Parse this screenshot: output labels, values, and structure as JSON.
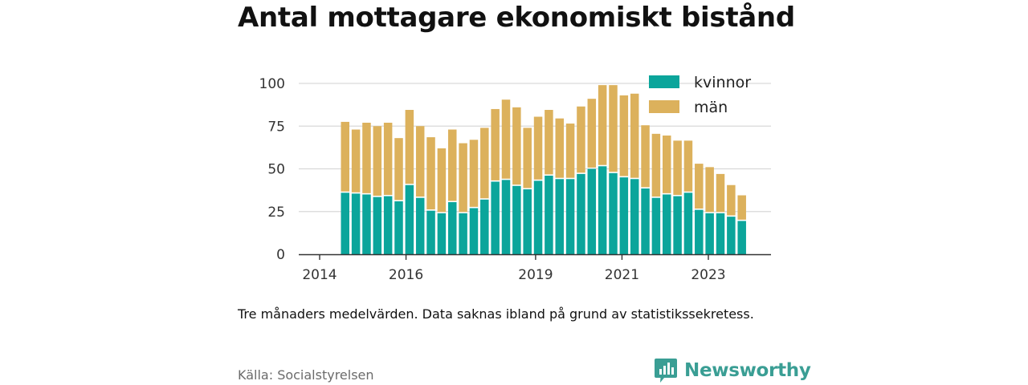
{
  "title": "Antal mottagare ekonomiskt bistånd",
  "note": "Tre månaders medelvärden. Data saknas ibland på grund av statistikssekretess.",
  "source": "Källa: Socialstyrelsen",
  "brand": {
    "name": "Newsworthy",
    "logo_icon": "bar-chart-speech-bubble-icon",
    "color": "#3a9e94"
  },
  "chart_data": {
    "type": "bar",
    "stacked": true,
    "title": "Antal mottagare ekonomiskt bistånd",
    "xlabel": "",
    "ylabel": "",
    "ylim": [
      0,
      100
    ],
    "yticks": [
      0,
      25,
      50,
      75,
      100
    ],
    "xticks": [
      "2014",
      "2016",
      "2019",
      "2021",
      "2023"
    ],
    "grid": true,
    "legend_position": "top-right",
    "series": [
      {
        "name": "kvinnor",
        "color": "#0ba59b",
        "values": [
          36,
          35.5,
          35,
          33.5,
          34,
          31,
          40.5,
          33,
          25.5,
          24,
          30.5,
          24,
          27,
          32,
          42.5,
          43.5,
          40,
          38,
          43,
          46,
          44,
          44,
          47,
          50,
          51.5,
          47.5,
          45,
          44,
          38.5,
          33,
          35,
          34,
          36,
          26,
          24,
          24,
          22,
          19.5
        ]
      },
      {
        "name": "män",
        "color": "#dcb15c",
        "values": [
          41.5,
          37.5,
          42,
          41.5,
          43,
          37,
          44,
          42,
          43,
          38,
          42.5,
          41,
          40,
          42,
          42.5,
          47,
          46,
          36,
          37.5,
          38.5,
          35.5,
          32.5,
          39.5,
          41,
          47.5,
          51.5,
          48,
          50,
          37,
          37.5,
          34.5,
          32.5,
          30.5,
          27,
          27,
          23,
          18.5,
          15
        ]
      }
    ]
  }
}
